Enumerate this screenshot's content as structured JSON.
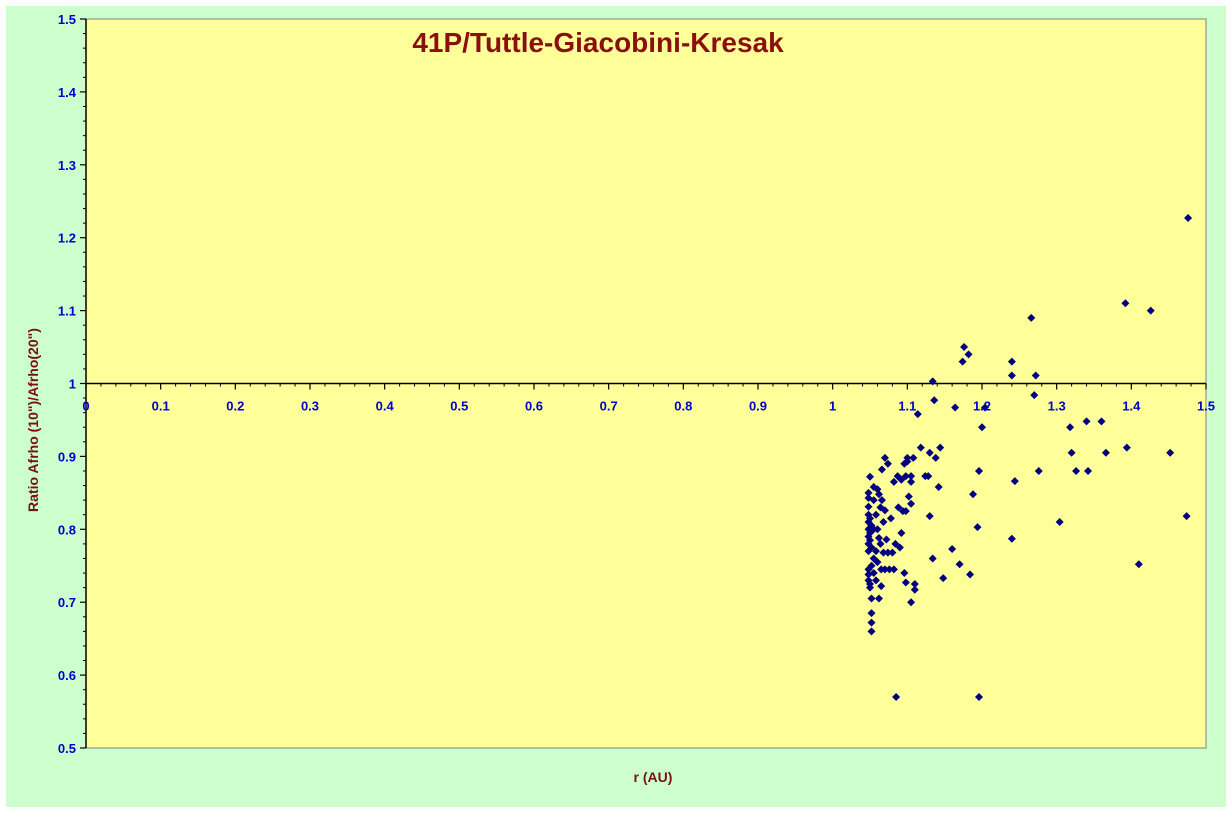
{
  "chart_data": {
    "type": "scatter",
    "title": "41P/Tuttle-Giacobini-Kresak",
    "xlabel": "r (AU)",
    "ylabel": "Ratio Afrho (10\")/Afrho(20\")",
    "xlim": [
      0,
      1.5
    ],
    "ylim": [
      0.5,
      1.5
    ],
    "x_crosses_at_y": 1.0,
    "x_ticks": [
      0,
      0.1,
      0.2,
      0.3,
      0.4,
      0.5,
      0.6,
      0.7,
      0.8,
      0.9,
      1.0,
      1.1,
      1.2,
      1.3,
      1.4,
      1.5
    ],
    "x_tick_labels": [
      "0",
      "0.1",
      "0.2",
      "0.3",
      "0.4",
      "0.5",
      "0.6",
      "0.7",
      "0.8",
      "0.9",
      "1",
      "1.1",
      "1.2",
      "1.3",
      "1.4",
      "1.5"
    ],
    "y_ticks": [
      0.5,
      0.6,
      0.7,
      0.8,
      0.9,
      1.0,
      1.1,
      1.2,
      1.3,
      1.4,
      1.5
    ],
    "y_tick_labels": [
      "0.5",
      "0.6",
      "0.7",
      "0.8",
      "0.9",
      "1",
      "1.1",
      "1.2",
      "1.3",
      "1.4",
      "1.5"
    ],
    "grid": false,
    "legend": "none",
    "colors": {
      "outer_background": "#ccffcc",
      "plot_background": "#ffff99",
      "marker": "#000080",
      "tick_labels": "#0000cc",
      "axis_titles": "#7a1010",
      "title": "#8b0f0f"
    },
    "series": [
      {
        "marker": "diamond",
        "points": [
          [
            1.048,
            0.85
          ],
          [
            1.048,
            0.843
          ],
          [
            1.048,
            0.831
          ],
          [
            1.048,
            0.82
          ],
          [
            1.048,
            0.81
          ],
          [
            1.048,
            0.8
          ],
          [
            1.048,
            0.79
          ],
          [
            1.048,
            0.78
          ],
          [
            1.048,
            0.77
          ],
          [
            1.048,
            0.745
          ],
          [
            1.048,
            0.738
          ],
          [
            1.048,
            0.73
          ],
          [
            1.05,
            0.872
          ],
          [
            1.05,
            0.815
          ],
          [
            1.05,
            0.795
          ],
          [
            1.05,
            0.785
          ],
          [
            1.05,
            0.725
          ],
          [
            1.05,
            0.72
          ],
          [
            1.052,
            0.805
          ],
          [
            1.052,
            0.775
          ],
          [
            1.052,
            0.75
          ],
          [
            1.052,
            0.705
          ],
          [
            1.052,
            0.685
          ],
          [
            1.052,
            0.672
          ],
          [
            1.052,
            0.66
          ],
          [
            1.055,
            0.858
          ],
          [
            1.055,
            0.84
          ],
          [
            1.055,
            0.8
          ],
          [
            1.055,
            0.76
          ],
          [
            1.055,
            0.74
          ],
          [
            1.058,
            0.82
          ],
          [
            1.058,
            0.77
          ],
          [
            1.058,
            0.73
          ],
          [
            1.06,
            0.855
          ],
          [
            1.06,
            0.8
          ],
          [
            1.06,
            0.755
          ],
          [
            1.062,
            0.848
          ],
          [
            1.062,
            0.788
          ],
          [
            1.062,
            0.705
          ],
          [
            1.064,
            0.83
          ],
          [
            1.064,
            0.78
          ],
          [
            1.065,
            0.745
          ],
          [
            1.065,
            0.722
          ],
          [
            1.066,
            0.882
          ],
          [
            1.066,
            0.84
          ],
          [
            1.068,
            0.81
          ],
          [
            1.068,
            0.768
          ],
          [
            1.07,
            0.898
          ],
          [
            1.07,
            0.826
          ],
          [
            1.07,
            0.745
          ],
          [
            1.072,
            0.786
          ],
          [
            1.074,
            0.89
          ],
          [
            1.074,
            0.768
          ],
          [
            1.076,
            0.745
          ],
          [
            1.078,
            0.815
          ],
          [
            1.08,
            0.768
          ],
          [
            1.082,
            0.865
          ],
          [
            1.082,
            0.745
          ],
          [
            1.084,
            0.78
          ],
          [
            1.085,
            0.57
          ],
          [
            1.087,
            0.873
          ],
          [
            1.088,
            0.83
          ],
          [
            1.09,
            0.775
          ],
          [
            1.092,
            0.868
          ],
          [
            1.092,
            0.795
          ],
          [
            1.094,
            0.825
          ],
          [
            1.096,
            0.89
          ],
          [
            1.096,
            0.74
          ],
          [
            1.098,
            0.873
          ],
          [
            1.098,
            0.825
          ],
          [
            1.098,
            0.727
          ],
          [
            1.1,
            0.898
          ],
          [
            1.1,
            0.893
          ],
          [
            1.102,
            0.845
          ],
          [
            1.105,
            0.873
          ],
          [
            1.105,
            0.865
          ],
          [
            1.105,
            0.835
          ],
          [
            1.105,
            0.7
          ],
          [
            1.108,
            0.898
          ],
          [
            1.11,
            0.725
          ],
          [
            1.11,
            0.717
          ],
          [
            1.114,
            0.958
          ],
          [
            1.118,
            0.912
          ],
          [
            1.124,
            0.873
          ],
          [
            1.128,
            0.873
          ],
          [
            1.13,
            0.905
          ],
          [
            1.13,
            0.818
          ],
          [
            1.134,
            1.003
          ],
          [
            1.134,
            0.76
          ],
          [
            1.136,
            0.977
          ],
          [
            1.138,
            0.898
          ],
          [
            1.142,
            0.858
          ],
          [
            1.144,
            0.912
          ],
          [
            1.148,
            0.733
          ],
          [
            1.16,
            0.773
          ],
          [
            1.164,
            0.967
          ],
          [
            1.17,
            0.752
          ],
          [
            1.174,
            1.03
          ],
          [
            1.176,
            1.05
          ],
          [
            1.182,
            1.04
          ],
          [
            1.184,
            0.738
          ],
          [
            1.188,
            0.848
          ],
          [
            1.194,
            0.803
          ],
          [
            1.196,
            0.88
          ],
          [
            1.196,
            0.57
          ],
          [
            1.2,
            0.94
          ],
          [
            1.204,
            0.967
          ],
          [
            1.24,
            1.03
          ],
          [
            1.24,
            1.011
          ],
          [
            1.24,
            0.787
          ],
          [
            1.244,
            0.866
          ],
          [
            1.266,
            1.09
          ],
          [
            1.27,
            0.984
          ],
          [
            1.272,
            1.011
          ],
          [
            1.276,
            0.88
          ],
          [
            1.304,
            0.81
          ],
          [
            1.318,
            0.94
          ],
          [
            1.32,
            0.905
          ],
          [
            1.326,
            0.88
          ],
          [
            1.34,
            0.948
          ],
          [
            1.342,
            0.88
          ],
          [
            1.36,
            0.948
          ],
          [
            1.366,
            0.905
          ],
          [
            1.392,
            1.11
          ],
          [
            1.394,
            0.912
          ],
          [
            1.41,
            0.752
          ],
          [
            1.426,
            1.1
          ],
          [
            1.452,
            0.905
          ],
          [
            1.474,
            0.818
          ],
          [
            1.476,
            1.227
          ]
        ]
      }
    ]
  }
}
